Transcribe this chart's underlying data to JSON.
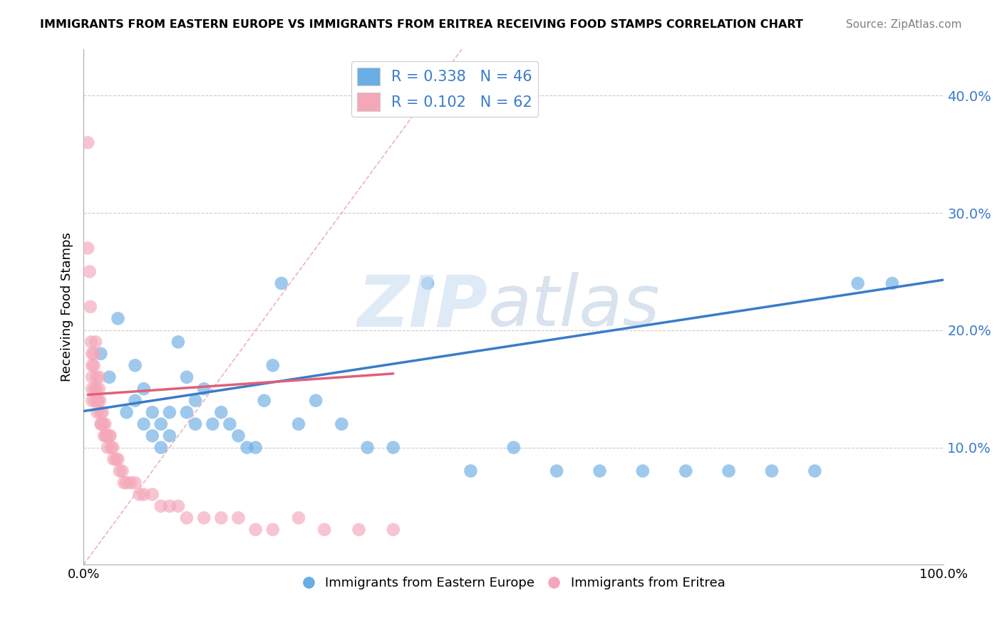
{
  "title": "IMMIGRANTS FROM EASTERN EUROPE VS IMMIGRANTS FROM ERITREA RECEIVING FOOD STAMPS CORRELATION CHART",
  "source": "Source: ZipAtlas.com",
  "ylabel": "Receiving Food Stamps",
  "yticks": [
    "10.0%",
    "20.0%",
    "30.0%",
    "40.0%"
  ],
  "ytick_vals": [
    0.1,
    0.2,
    0.3,
    0.4
  ],
  "xlim": [
    0.0,
    1.0
  ],
  "ylim": [
    0.0,
    0.44
  ],
  "legend1_label": "R = 0.338   N = 46",
  "legend2_label": "R = 0.102   N = 62",
  "legend_label1": "Immigrants from Eastern Europe",
  "legend_label2": "Immigrants from Eritrea",
  "blue_color": "#6aade4",
  "pink_color": "#f4a7b9",
  "blue_line_color": "#3a7cc9",
  "pink_line_color": "#e0607a",
  "blue_R": 0.338,
  "blue_N": 46,
  "pink_R": 0.102,
  "pink_N": 62,
  "blue_x": [
    0.02,
    0.03,
    0.04,
    0.05,
    0.06,
    0.06,
    0.07,
    0.07,
    0.08,
    0.08,
    0.09,
    0.09,
    0.1,
    0.1,
    0.11,
    0.12,
    0.12,
    0.13,
    0.13,
    0.14,
    0.15,
    0.16,
    0.17,
    0.18,
    0.19,
    0.2,
    0.21,
    0.22,
    0.23,
    0.25,
    0.27,
    0.3,
    0.33,
    0.36,
    0.4,
    0.45,
    0.5,
    0.55,
    0.6,
    0.65,
    0.7,
    0.75,
    0.8,
    0.85,
    0.9,
    0.94
  ],
  "blue_y": [
    0.18,
    0.16,
    0.21,
    0.13,
    0.17,
    0.14,
    0.15,
    0.12,
    0.13,
    0.11,
    0.12,
    0.1,
    0.13,
    0.11,
    0.19,
    0.16,
    0.13,
    0.14,
    0.12,
    0.15,
    0.12,
    0.13,
    0.12,
    0.11,
    0.1,
    0.1,
    0.14,
    0.17,
    0.24,
    0.12,
    0.14,
    0.12,
    0.1,
    0.1,
    0.24,
    0.08,
    0.1,
    0.08,
    0.08,
    0.08,
    0.08,
    0.08,
    0.08,
    0.08,
    0.24,
    0.24
  ],
  "pink_x": [
    0.005,
    0.005,
    0.007,
    0.008,
    0.009,
    0.01,
    0.01,
    0.01,
    0.01,
    0.01,
    0.012,
    0.012,
    0.013,
    0.013,
    0.014,
    0.015,
    0.015,
    0.016,
    0.016,
    0.017,
    0.018,
    0.018,
    0.019,
    0.02,
    0.02,
    0.021,
    0.022,
    0.023,
    0.024,
    0.025,
    0.026,
    0.027,
    0.028,
    0.03,
    0.031,
    0.032,
    0.034,
    0.035,
    0.038,
    0.04,
    0.042,
    0.045,
    0.047,
    0.05,
    0.055,
    0.06,
    0.065,
    0.07,
    0.08,
    0.09,
    0.1,
    0.11,
    0.12,
    0.14,
    0.16,
    0.18,
    0.2,
    0.22,
    0.25,
    0.28,
    0.32,
    0.36
  ],
  "pink_y": [
    0.36,
    0.27,
    0.25,
    0.22,
    0.19,
    0.18,
    0.17,
    0.16,
    0.15,
    0.14,
    0.18,
    0.17,
    0.15,
    0.14,
    0.19,
    0.16,
    0.15,
    0.14,
    0.13,
    0.14,
    0.16,
    0.15,
    0.14,
    0.13,
    0.12,
    0.12,
    0.13,
    0.12,
    0.11,
    0.12,
    0.11,
    0.11,
    0.1,
    0.11,
    0.11,
    0.1,
    0.1,
    0.09,
    0.09,
    0.09,
    0.08,
    0.08,
    0.07,
    0.07,
    0.07,
    0.07,
    0.06,
    0.06,
    0.06,
    0.05,
    0.05,
    0.05,
    0.04,
    0.04,
    0.04,
    0.04,
    0.03,
    0.03,
    0.04,
    0.03,
    0.03,
    0.03
  ],
  "blue_line_x0": 0.0,
  "blue_line_x1": 1.0,
  "blue_line_y0": 0.131,
  "blue_line_y1": 0.243,
  "pink_line_x0": 0.005,
  "pink_line_x1": 0.36,
  "pink_line_y0": 0.145,
  "pink_line_y1": 0.163,
  "diag_line_color": "#e8a0b0",
  "diag_line_x0": 0.0,
  "diag_line_x1": 0.44,
  "diag_line_y0": 0.0,
  "diag_line_y1": 0.44
}
